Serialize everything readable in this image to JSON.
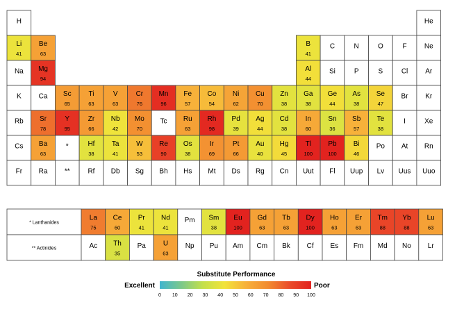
{
  "chart_data": {
    "type": "heatmap",
    "scale": {
      "title": "Substitute Performance",
      "low_label": "Excellent",
      "high_label": "Poor",
      "ticks": [
        "0",
        "10",
        "20",
        "30",
        "40",
        "50",
        "60",
        "70",
        "80",
        "90",
        "100"
      ],
      "range": [
        0,
        100
      ],
      "colors": [
        "#3fb5cf",
        "#7cc88b",
        "#c4e04a",
        "#f2e33a",
        "#f7b03a",
        "#f28c30",
        "#ea4c2a",
        "#e2231f"
      ]
    },
    "main_rows": [
      [
        [
          "H",
          null
        ],
        null,
        null,
        null,
        null,
        null,
        null,
        null,
        null,
        null,
        null,
        null,
        null,
        null,
        null,
        null,
        null,
        [
          "He",
          null
        ]
      ],
      [
        [
          "Li",
          41
        ],
        [
          "Be",
          63
        ],
        null,
        null,
        null,
        null,
        null,
        null,
        null,
        null,
        null,
        null,
        [
          "B",
          41
        ],
        [
          "C",
          null
        ],
        [
          "N",
          null
        ],
        [
          "O",
          null
        ],
        [
          "F",
          null
        ],
        [
          "Ne",
          null
        ]
      ],
      [
        [
          "Na",
          null
        ],
        [
          "Mg",
          94
        ],
        null,
        null,
        null,
        null,
        null,
        null,
        null,
        null,
        null,
        null,
        [
          "Al",
          44
        ],
        [
          "Si",
          null
        ],
        [
          "P",
          null
        ],
        [
          "S",
          null
        ],
        [
          "Cl",
          null
        ],
        [
          "Ar",
          null
        ]
      ],
      [
        [
          "K",
          null
        ],
        [
          "Ca",
          null
        ],
        [
          "Sc",
          65
        ],
        [
          "Ti",
          63
        ],
        [
          "V",
          63
        ],
        [
          "Cr",
          76
        ],
        [
          "Mn",
          96
        ],
        [
          "Fe",
          57
        ],
        [
          "Co",
          54
        ],
        [
          "Ni",
          62
        ],
        [
          "Cu",
          70
        ],
        [
          "Zn",
          38
        ],
        [
          "Ga",
          38
        ],
        [
          "Ge",
          44
        ],
        [
          "As",
          38
        ],
        [
          "Se",
          47
        ],
        [
          "Br",
          null
        ],
        [
          "Kr",
          null
        ]
      ],
      [
        [
          "Rb",
          null
        ],
        [
          "Sr",
          78
        ],
        [
          "Y",
          95
        ],
        [
          "Zr",
          66
        ],
        [
          "Nb",
          42
        ],
        [
          "Mo",
          70
        ],
        [
          "Tc",
          null
        ],
        [
          "Ru",
          63
        ],
        [
          "Rh",
          98
        ],
        [
          "Pd",
          39
        ],
        [
          "Ag",
          44
        ],
        [
          "Cd",
          38
        ],
        [
          "In",
          60
        ],
        [
          "Sn",
          36
        ],
        [
          "Sb",
          57
        ],
        [
          "Te",
          38
        ],
        [
          "I",
          null
        ],
        [
          "Xe",
          null
        ]
      ],
      [
        [
          "Cs",
          null
        ],
        [
          "Ba",
          63
        ],
        [
          "*",
          null
        ],
        [
          "Hf",
          38
        ],
        [
          "Ta",
          41
        ],
        [
          "W",
          53
        ],
        [
          "Re",
          90
        ],
        [
          "Os",
          38
        ],
        [
          "Ir",
          69
        ],
        [
          "Pt",
          66
        ],
        [
          "Au",
          40
        ],
        [
          "Hg",
          45
        ],
        [
          "Tl",
          100
        ],
        [
          "Pb",
          100
        ],
        [
          "Bi",
          46
        ],
        [
          "Po",
          null
        ],
        [
          "At",
          null
        ],
        [
          "Rn",
          null
        ]
      ],
      [
        [
          "Fr",
          null
        ],
        [
          "Ra",
          null
        ],
        [
          "**",
          null
        ],
        [
          "Rf",
          null
        ],
        [
          "Db",
          null
        ],
        [
          "Sg",
          null
        ],
        [
          "Bh",
          null
        ],
        [
          "Hs",
          null
        ],
        [
          "Mt",
          null
        ],
        [
          "Ds",
          null
        ],
        [
          "Rg",
          null
        ],
        [
          "Cn",
          null
        ],
        [
          "Uut",
          null
        ],
        [
          "Fl",
          null
        ],
        [
          "Uup",
          null
        ],
        [
          "Lv",
          null
        ],
        [
          "Uus",
          null
        ],
        [
          "Uuo",
          null
        ]
      ]
    ],
    "series_rows": [
      {
        "label": "* Lanthanides",
        "cells": [
          [
            "La",
            75
          ],
          [
            "Ce",
            60
          ],
          [
            "Pr",
            41
          ],
          [
            "Nd",
            41
          ],
          [
            "Pm",
            null
          ],
          [
            "Sm",
            38
          ],
          [
            "Eu",
            100
          ],
          [
            "Gd",
            63
          ],
          [
            "Tb",
            63
          ],
          [
            "Dy",
            100
          ],
          [
            "Ho",
            63
          ],
          [
            "Er",
            63
          ],
          [
            "Tm",
            88
          ],
          [
            "Yb",
            88
          ],
          [
            "Lu",
            63
          ]
        ]
      },
      {
        "label": "** Actinides",
        "cells": [
          [
            "Ac",
            null
          ],
          [
            "Th",
            35
          ],
          [
            "Pa",
            null
          ],
          [
            "U",
            63
          ],
          [
            "Np",
            null
          ],
          [
            "Pu",
            null
          ],
          [
            "Am",
            null
          ],
          [
            "Cm",
            null
          ],
          [
            "Bk",
            null
          ],
          [
            "Cf",
            null
          ],
          [
            "Es",
            null
          ],
          [
            "Fm",
            null
          ],
          [
            "Md",
            null
          ],
          [
            "No",
            null
          ],
          [
            "Lr",
            null
          ]
        ]
      }
    ]
  }
}
